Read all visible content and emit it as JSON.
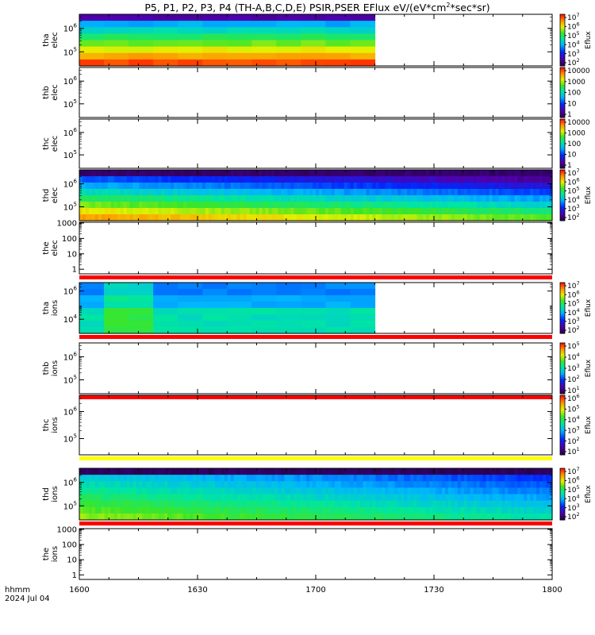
{
  "chart_data": {
    "type": "heatmap",
    "title": "P5, P1, P2, P3, P4 (TH-A,B,C,D,E) PSIR,PSER EFlux eV/(eV*cm2*sec*sr)",
    "title_parts": {
      "pre": "P5, P1, P2, P3, P4 (TH-A,B,C,D,E) PSIR,PSER EFlux eV/(eV*cm",
      "sup": "2",
      "post": "*sec*sr)"
    },
    "x_axis": {
      "label_top": "hhmm",
      "label_bottom": "2024 Jul 04",
      "ticks": [
        "1600",
        "1630",
        "1700",
        "1730",
        "1800"
      ],
      "range_hhmm": [
        "1600",
        "1800"
      ]
    },
    "colorbar_label": "Eflux",
    "panels": [
      {
        "name": "tha-elec",
        "label1": "tha",
        "label2": "elec",
        "yscale": "log",
        "yticks": [
          {
            "base": "10",
            "exp": "6",
            "v": 6
          },
          {
            "base": "10",
            "exp": "5",
            "v": 5
          }
        ],
        "ylim_log": [
          4.4,
          6.6
        ],
        "data_start": "1600",
        "data_end": "1715",
        "ncols": 12,
        "top_low": true,
        "level": "high",
        "bar": "none",
        "colorbar": {
          "kind": "exp",
          "labels": [
            {
              "base": "10",
              "exp": "7"
            },
            {
              "base": "10",
              "exp": "6"
            },
            {
              "base": "10",
              "exp": "5"
            },
            {
              "base": "10",
              "exp": "4"
            },
            {
              "base": "10",
              "exp": "3"
            },
            {
              "base": "10",
              "exp": "2"
            }
          ]
        }
      },
      {
        "name": "thb-elec",
        "label1": "thb",
        "label2": "elec",
        "yscale": "log",
        "yticks": [
          {
            "base": "10",
            "exp": "6",
            "v": 6
          },
          {
            "base": "10",
            "exp": "5",
            "v": 5
          }
        ],
        "ylim_log": [
          4.4,
          6.6
        ],
        "data_start": null,
        "data_end": null,
        "bar": "none",
        "colorbar": {
          "kind": "num",
          "labels": [
            "10000",
            "1000",
            "100",
            "10",
            "1"
          ]
        }
      },
      {
        "name": "thc-elec",
        "label1": "thc",
        "label2": "elec",
        "yscale": "log",
        "yticks": [
          {
            "base": "10",
            "exp": "6",
            "v": 6
          },
          {
            "base": "10",
            "exp": "5",
            "v": 5
          }
        ],
        "ylim_log": [
          4.4,
          6.6
        ],
        "data_start": null,
        "data_end": null,
        "bar": "none",
        "colorbar": {
          "kind": "num",
          "labels": [
            "10000",
            "1000",
            "100",
            "10",
            "1"
          ]
        }
      },
      {
        "name": "thd-elec",
        "label1": "thd",
        "label2": "elec",
        "yscale": "log",
        "yticks": [
          {
            "base": "10",
            "exp": "6",
            "v": 6
          },
          {
            "base": "10",
            "exp": "5",
            "v": 5
          }
        ],
        "ylim_log": [
          4.4,
          6.6
        ],
        "data_start": "1600",
        "data_end": "1800",
        "ncols": 150,
        "top_low": true,
        "level": "mid",
        "bar": "none",
        "colorbar": {
          "kind": "exp",
          "labels": [
            {
              "base": "10",
              "exp": "7"
            },
            {
              "base": "10",
              "exp": "6"
            },
            {
              "base": "10",
              "exp": "5"
            },
            {
              "base": "10",
              "exp": "4"
            },
            {
              "base": "10",
              "exp": "3"
            },
            {
              "base": "10",
              "exp": "2"
            }
          ]
        }
      },
      {
        "name": "the-elec",
        "label1": "the",
        "label2": "elec",
        "yscale": "num",
        "yticks": [
          {
            "t": "1000",
            "v": 3
          },
          {
            "t": "100",
            "v": 2
          },
          {
            "t": "10",
            "v": 1
          },
          {
            "t": "1",
            "v": 0
          }
        ],
        "ylim_log": [
          -0.3,
          3.05
        ],
        "data_start": null,
        "data_end": null,
        "bar": "red",
        "colorbar": null
      },
      {
        "name": "tha-ions",
        "label1": "tha",
        "label2": "ions",
        "yscale": "log",
        "yticks": [
          {
            "base": "10",
            "exp": "6",
            "v": 6
          },
          {
            "base": "10",
            "exp": "4",
            "v": 4
          }
        ],
        "ylim_log": [
          3.0,
          6.6
        ],
        "data_start": "1600",
        "data_end": "1715",
        "ncols": 12,
        "top_low": false,
        "level": "ion",
        "bar": "red",
        "colorbar": {
          "kind": "exp",
          "labels": [
            {
              "base": "10",
              "exp": "7"
            },
            {
              "base": "10",
              "exp": "6"
            },
            {
              "base": "10",
              "exp": "5"
            },
            {
              "base": "10",
              "exp": "4"
            },
            {
              "base": "10",
              "exp": "3"
            },
            {
              "base": "10",
              "exp": "2"
            }
          ]
        }
      },
      {
        "name": "thb-ions",
        "label1": "thb",
        "label2": "ions",
        "yscale": "log",
        "yticks": [
          {
            "base": "10",
            "exp": "6",
            "v": 6
          },
          {
            "base": "10",
            "exp": "5",
            "v": 5
          }
        ],
        "ylim_log": [
          4.4,
          6.6
        ],
        "data_start": null,
        "data_end": null,
        "bar": "red",
        "colorbar": {
          "kind": "exp",
          "labels": [
            {
              "base": "10",
              "exp": "5"
            },
            {
              "base": "10",
              "exp": "4"
            },
            {
              "base": "10",
              "exp": "3"
            },
            {
              "base": "10",
              "exp": "2"
            },
            {
              "base": "10",
              "exp": "1"
            }
          ]
        }
      },
      {
        "name": "thc-ions",
        "label1": "thc",
        "label2": "ions",
        "yscale": "log",
        "yticks": [
          {
            "base": "10",
            "exp": "6",
            "v": 6
          },
          {
            "base": "10",
            "exp": "5",
            "v": 5
          }
        ],
        "ylim_log": [
          4.4,
          6.6
        ],
        "data_start": null,
        "data_end": null,
        "bar": "yellow",
        "colorbar": {
          "kind": "exp",
          "labels": [
            {
              "base": "10",
              "exp": "6"
            },
            {
              "base": "10",
              "exp": "5"
            },
            {
              "base": "10",
              "exp": "4"
            },
            {
              "base": "10",
              "exp": "3"
            },
            {
              "base": "10",
              "exp": "2"
            },
            {
              "base": "10",
              "exp": "1"
            }
          ]
        }
      },
      {
        "name": "thd-ions",
        "label1": "thd",
        "label2": "ions",
        "yscale": "log",
        "yticks": [
          {
            "base": "10",
            "exp": "6",
            "v": 6
          },
          {
            "base": "10",
            "exp": "5",
            "v": 5
          }
        ],
        "ylim_log": [
          4.4,
          6.6
        ],
        "data_start": "1600",
        "data_end": "1800",
        "ncols": 150,
        "top_low": true,
        "level": "ionmid",
        "bar": "red",
        "colorbar": {
          "kind": "exp",
          "labels": [
            {
              "base": "10",
              "exp": "7"
            },
            {
              "base": "10",
              "exp": "6"
            },
            {
              "base": "10",
              "exp": "5"
            },
            {
              "base": "10",
              "exp": "4"
            },
            {
              "base": "10",
              "exp": "3"
            },
            {
              "base": "10",
              "exp": "2"
            }
          ]
        }
      },
      {
        "name": "the-ions",
        "label1": "the",
        "label2": "ions",
        "yscale": "num",
        "yticks": [
          {
            "t": "1000",
            "v": 3
          },
          {
            "t": "100",
            "v": 2
          },
          {
            "t": "10",
            "v": 1
          },
          {
            "t": "1",
            "v": 0
          }
        ],
        "ylim_log": [
          -0.3,
          3.05
        ],
        "data_start": null,
        "data_end": null,
        "bar": "none",
        "colorbar": null
      }
    ]
  }
}
